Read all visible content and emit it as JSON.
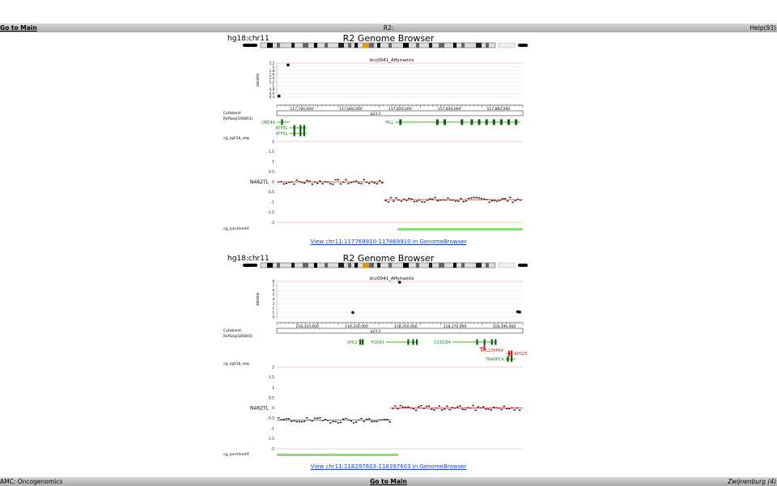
{
  "top_bar": {
    "left_link": "Go to Main",
    "center_title": "R2:",
    "right_text": "Help(93)"
  },
  "bottom_bar": {
    "left_text": "AMC: Oncogenomics",
    "center_link": "Go to Main",
    "right_text": "Zwijnenburg (4)"
  },
  "panels": [
    {
      "assembly": "hg18:chr11",
      "title": "R2 Genome Browser",
      "array_label": "itcc0041_Affymetrix",
      "y_axis_label": "zscore",
      "zscore_ticks": [
        "2.2",
        "2",
        "1.8",
        "1.6",
        "1.4",
        "1.2",
        "1",
        "0.8",
        "0.6",
        "0.4"
      ],
      "zscore_points": [
        {
          "x": 117774500,
          "y": 2.1
        },
        {
          "x": 117770800,
          "y": 0.45
        }
      ],
      "coord_ticks": [
        "117,780,000",
        "117,800,000",
        "117,820,000",
        "117,840,000",
        "117,860,000"
      ],
      "cytoband_label": "Cytoband",
      "cytoband_name": "q23.3",
      "refseq_label": "RefSeq(100801)",
      "genes": [
        {
          "name": "UBE4A",
          "color": "#1f8a1f"
        },
        {
          "name": "ATP5L",
          "color": "#1f8a1f"
        },
        {
          "name": "ATP5L",
          "color": "#1f8a1f"
        },
        {
          "name": "MLL",
          "color": "#1f8a1f"
        }
      ],
      "seg_track_label": "cg_cgh1b_seg",
      "seg_ticks": [
        "2",
        "1.5",
        "1",
        "0.5",
        "0",
        "-0.5",
        "-1",
        "-1.5",
        "-2"
      ],
      "sample_label": "N462TL",
      "seg_levels": [
        {
          "from": 117769910,
          "to": 117813500,
          "value": 0.0
        },
        {
          "from": 117813500,
          "to": 117869910,
          "value": -0.88
        }
      ],
      "junction_label": "cg_junctiondif",
      "view_link": "View chr11:117769910-117869910 in GenomeBrowser"
    },
    {
      "assembly": "hg18:chr11",
      "title": "R2 Genome Browser",
      "array_label": "itcc0041_Affymetrix",
      "y_axis_label": "zscore",
      "zscore_ticks": [
        "8",
        "7",
        "6",
        "5",
        "4",
        "3",
        "2",
        "1",
        "0"
      ],
      "zscore_points": [
        {
          "x": 118328500,
          "y": 1.0
        },
        {
          "x": 118347500,
          "y": 7.8
        },
        {
          "x": 118395500,
          "y": 1.2
        },
        {
          "x": 118396300,
          "y": 1.1
        }
      ],
      "coord_ticks": [
        "118,310,000",
        "118,330,000",
        "118,350,000",
        "118,370,000",
        "118,390,000"
      ],
      "cytoband_label": "Cytoband",
      "cytoband_name": "q23.3",
      "refseq_label": "RefSeq(100801)",
      "genes": [
        {
          "name": "UPK2",
          "color": "#1f8a1f"
        },
        {
          "name": "FOXR1",
          "color": "#1f8a1f"
        },
        {
          "name": "CCDC84",
          "color": "#1f8a1f"
        },
        {
          "name": "RPL23AP64",
          "color": "#cc2222"
        },
        {
          "name": "RPS25",
          "color": "#cc2222"
        },
        {
          "name": "TRAPPC4",
          "color": "#1f8a1f"
        }
      ],
      "seg_track_label": "cg_cgh1b_seg",
      "seg_ticks": [
        "2",
        "1.5",
        "1",
        "0.5",
        "0",
        "-0.5",
        "-1",
        "-1.5",
        "-2"
      ],
      "sample_label": "N462TL",
      "seg_levels": [
        {
          "from": 118297603,
          "to": 118344000,
          "value": -0.6
        },
        {
          "from": 118344000,
          "to": 118397603,
          "value": 0.0
        }
      ],
      "junction_label": "cg_junctiondif",
      "view_link": "View chr11:118297603-118397603 in GenomeBrowser"
    }
  ],
  "colors": {
    "gene_green": "#1f8a1f",
    "gene_red": "#cc2222",
    "junction_bar": "#88dd77",
    "threshold_line": "#ee9999",
    "seg_line": "#cc2222",
    "link": "#1a3fcf"
  }
}
